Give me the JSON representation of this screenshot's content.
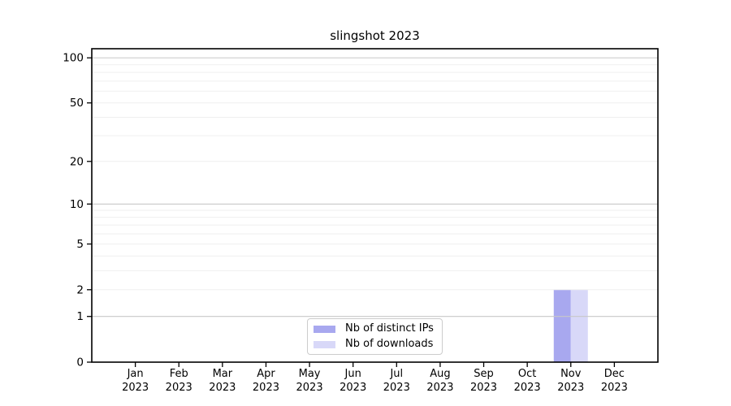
{
  "chart_data": {
    "type": "bar",
    "title": "slingshot 2023",
    "categories": [
      "Jan",
      "Feb",
      "Mar",
      "Apr",
      "May",
      "Jun",
      "Jul",
      "Aug",
      "Sep",
      "Oct",
      "Nov",
      "Dec"
    ],
    "year_label": "2023",
    "series": [
      {
        "name": "Nb of distinct IPs",
        "color": "#a8a8ef",
        "values": [
          0,
          0,
          0,
          0,
          0,
          0,
          0,
          0,
          0,
          0,
          2,
          0
        ]
      },
      {
        "name": "Nb of downloads",
        "color": "#d8d8f8",
        "values": [
          0,
          0,
          0,
          0,
          0,
          0,
          0,
          0,
          0,
          0,
          2,
          0
        ]
      }
    ],
    "yscale": "log1p",
    "ylim": [
      0,
      115
    ],
    "ytick_labels": [
      0,
      1,
      2,
      5,
      10,
      20,
      50,
      100
    ],
    "major_gridlines": [
      1,
      10,
      100
    ],
    "minor_gridlines": [
      2,
      3,
      4,
      5,
      6,
      7,
      8,
      9,
      20,
      30,
      40,
      50,
      60,
      70,
      80,
      90
    ],
    "grid": true,
    "legend_position": "lower center",
    "xlabel": "",
    "ylabel": ""
  },
  "colors": {
    "bar_distinct_ips": "#a8a8ef",
    "bar_downloads": "#d8d8f8",
    "major_grid": "#c8c8c8",
    "minor_grid": "#efefef",
    "axis": "#000000",
    "text": "#000000",
    "background": "#ffffff",
    "legend_border": "#cccccc"
  }
}
